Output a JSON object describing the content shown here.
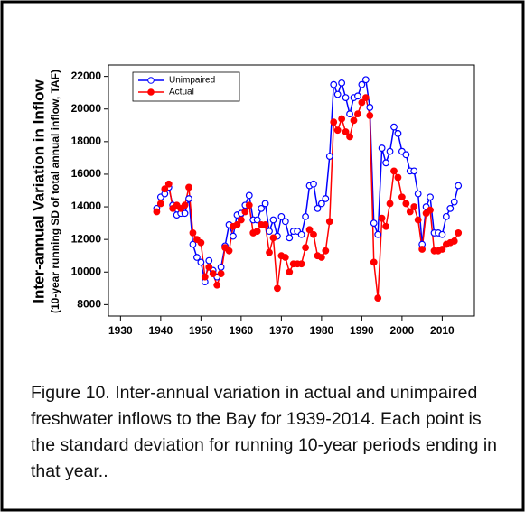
{
  "chart_data": {
    "type": "line",
    "y_label": "Inter-annual Variation in Inflow",
    "y_sublabel": "(10-year running SD of total annual inflow, TAF)",
    "x": [
      1939,
      1940,
      1941,
      1942,
      1943,
      1944,
      1945,
      1946,
      1947,
      1948,
      1949,
      1950,
      1951,
      1952,
      1953,
      1954,
      1955,
      1956,
      1957,
      1958,
      1959,
      1960,
      1961,
      1962,
      1963,
      1964,
      1965,
      1966,
      1967,
      1968,
      1969,
      1970,
      1971,
      1972,
      1973,
      1974,
      1975,
      1976,
      1977,
      1978,
      1979,
      1980,
      1981,
      1982,
      1983,
      1984,
      1985,
      1986,
      1987,
      1988,
      1989,
      1990,
      1991,
      1992,
      1993,
      1994,
      1995,
      1996,
      1997,
      1998,
      1999,
      2000,
      2001,
      2002,
      2003,
      2004,
      2005,
      2006,
      2007,
      2008,
      2009,
      2010,
      2011,
      2012,
      2013,
      2014
    ],
    "series": [
      {
        "name": "Unimpaired",
        "color": "#0000ff",
        "marker": "open",
        "values": [
          13900,
          14600,
          14800,
          15200,
          14100,
          13500,
          13600,
          13600,
          14500,
          11700,
          10900,
          10600,
          9400,
          10700,
          10100,
          9700,
          10300,
          11600,
          12900,
          12200,
          13500,
          13600,
          14100,
          14700,
          13200,
          13200,
          13900,
          14200,
          12500,
          13200,
          12200,
          13400,
          13100,
          12100,
          12500,
          12500,
          12300,
          13400,
          15300,
          15400,
          13900,
          14200,
          14500,
          17100,
          21500,
          20900,
          21600,
          20700,
          19700,
          20700,
          20800,
          21500,
          21800,
          20100,
          13000,
          12300,
          17600,
          16700,
          17400,
          18900,
          18500,
          17400,
          17200,
          16200,
          16200,
          14800,
          11700,
          14000,
          14600,
          12400,
          12400,
          12300,
          13400,
          13900,
          14300,
          15300
        ]
      },
      {
        "name": "Actual",
        "color": "#ff0000",
        "marker": "filled",
        "values": [
          13700,
          14200,
          15100,
          15400,
          13900,
          14100,
          13900,
          14100,
          15200,
          12400,
          12000,
          11800,
          9700,
          10300,
          9900,
          9200,
          9900,
          11500,
          11300,
          12800,
          12900,
          13200,
          13700,
          14100,
          12400,
          12500,
          12900,
          12900,
          11200,
          12100,
          9000,
          11000,
          10900,
          10000,
          10500,
          10500,
          10500,
          11500,
          12600,
          12300,
          11000,
          10900,
          11300,
          13100,
          19200,
          18700,
          19400,
          18600,
          18300,
          19300,
          19700,
          20400,
          20700,
          19600,
          10600,
          8400,
          13300,
          12800,
          14200,
          16200,
          15800,
          14600,
          14200,
          13700,
          14000,
          13200,
          11400,
          13600,
          13800,
          11300,
          11300,
          11400,
          11700,
          11800,
          11900,
          12400
        ]
      }
    ],
    "xlim": [
      1927,
      2018
    ],
    "xticks": [
      1930,
      1940,
      1950,
      1960,
      1970,
      1980,
      1990,
      2000,
      2010
    ],
    "ylim": [
      7300,
      22700
    ],
    "yticks": [
      8000,
      10000,
      12000,
      14000,
      16000,
      18000,
      20000,
      22000
    ],
    "legend": "upper left",
    "grid": false
  },
  "caption": "Figure 10. Inter-annual variation in actual and unimpaired freshwater inflows to the Bay for 1939-2014.  Each point is the standard deviation for running 10-year periods ending in that year.."
}
